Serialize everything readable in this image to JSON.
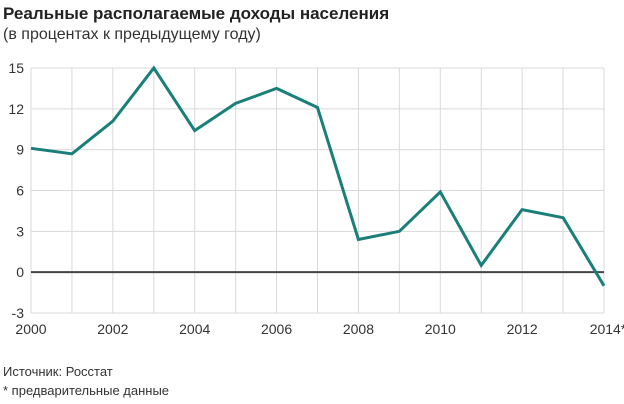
{
  "header": {
    "title": "Реальные располагаемые доходы населения",
    "subtitle": "(в процентах к предыдущему году)"
  },
  "footer": {
    "source": "Источник: Росстат",
    "footnote": "* предварительные данные"
  },
  "colors": {
    "line": "#1a7f78",
    "grid": "#d9d9d9",
    "zero_line": "#444444"
  },
  "chart_data": {
    "type": "line",
    "title": "Реальные располагаемые доходы населения",
    "subtitle": "(в процентах к предыдущему году)",
    "xlabel": "",
    "ylabel": "",
    "x": [
      2000,
      2001,
      2002,
      2003,
      2004,
      2005,
      2006,
      2007,
      2008,
      2009,
      2010,
      2011,
      2012,
      2013,
      2014
    ],
    "series": [
      {
        "name": "Реальные располагаемые доходы населения",
        "values": [
          9.1,
          8.7,
          11.1,
          15.0,
          10.4,
          12.4,
          13.5,
          12.1,
          2.4,
          3.0,
          5.9,
          0.5,
          4.6,
          4.0,
          -1.0
        ]
      }
    ],
    "xticks": [
      "2000",
      "2002",
      "2004",
      "2006",
      "2008",
      "2010",
      "2012",
      "2014*"
    ],
    "yticks": [
      "15",
      "12",
      "9",
      "6",
      "3",
      "0",
      "-3"
    ],
    "ylim": [
      -3,
      15
    ],
    "xlim": [
      2000,
      2014
    ],
    "grid": true,
    "legend": "none",
    "annotations": [
      "2014* — предварительные данные"
    ]
  }
}
